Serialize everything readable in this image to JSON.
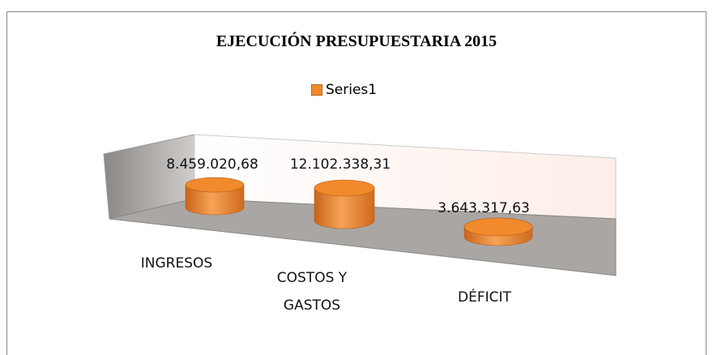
{
  "chart_data": {
    "type": "bar",
    "title": "EJECUCIÓN PRESUPUESTARIA 2015",
    "categories": [
      "INGRESOS",
      "COSTOS Y GASTOS",
      "DÉFICIT"
    ],
    "series": [
      {
        "name": "Series1",
        "color": "#f08a2c",
        "values": [
          8459020.68,
          12102338.31,
          3643317.63
        ],
        "value_labels": [
          "8.459.020,68",
          "12.102.338,31",
          "3.643.317,63"
        ]
      }
    ],
    "legend": "top"
  }
}
